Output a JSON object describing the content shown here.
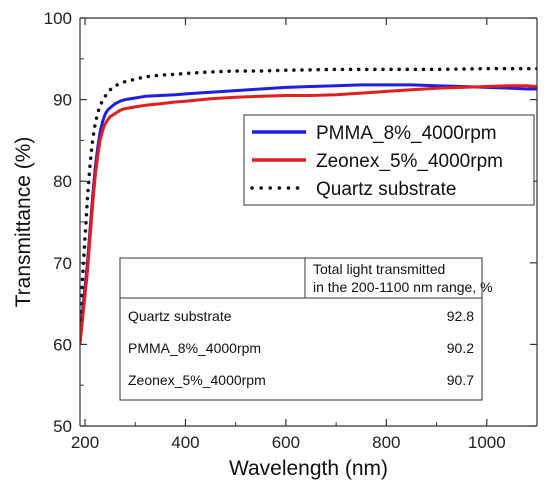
{
  "chart_data": {
    "type": "line",
    "title": "",
    "xlabel": "Wavelength (nm)",
    "ylabel": "Transmittance (%)",
    "xlim": [
      190,
      1100
    ],
    "ylim": [
      50,
      100
    ],
    "x_ticks": [
      200,
      400,
      600,
      800,
      1000
    ],
    "y_ticks": [
      50,
      60,
      70,
      80,
      90,
      100
    ],
    "grid": false,
    "legend_position": "right",
    "series": [
      {
        "name": "PMMA_8%_4000rpm",
        "color": "#1f1fe0",
        "style": "solid",
        "x": [
          190,
          195,
          200,
          205,
          210,
          215,
          220,
          225,
          230,
          235,
          240,
          245,
          250,
          260,
          270,
          280,
          300,
          320,
          350,
          380,
          400,
          450,
          500,
          550,
          600,
          650,
          700,
          750,
          800,
          850,
          900,
          950,
          1000,
          1050,
          1080,
          1100
        ],
        "y": [
          61,
          64,
          67,
          70,
          74,
          78,
          81.5,
          84,
          86,
          87.3,
          88.2,
          88.7,
          89.0,
          89.5,
          89.8,
          90.0,
          90.2,
          90.4,
          90.5,
          90.6,
          90.7,
          90.9,
          91.1,
          91.3,
          91.5,
          91.6,
          91.7,
          91.8,
          91.8,
          91.8,
          91.7,
          91.6,
          91.5,
          91.4,
          91.3,
          91.3
        ]
      },
      {
        "name": "Zeonex_5%_4000rpm",
        "color": "#e01f1f",
        "style": "solid",
        "x": [
          190,
          195,
          200,
          205,
          210,
          215,
          220,
          225,
          230,
          235,
          240,
          245,
          250,
          260,
          270,
          280,
          300,
          320,
          350,
          380,
          400,
          450,
          500,
          550,
          600,
          650,
          700,
          750,
          800,
          850,
          900,
          950,
          1000,
          1050,
          1080,
          1100
        ],
        "y": [
          60,
          63,
          66,
          69,
          73,
          77,
          80.5,
          83,
          85,
          86.2,
          87.0,
          87.5,
          87.9,
          88.3,
          88.7,
          88.9,
          89.1,
          89.3,
          89.5,
          89.7,
          89.8,
          90.1,
          90.3,
          90.4,
          90.5,
          90.5,
          90.6,
          90.8,
          91.0,
          91.2,
          91.4,
          91.5,
          91.6,
          91.7,
          91.7,
          91.6
        ]
      },
      {
        "name": "Quartz substrate",
        "color": "#111111",
        "style": "dotted",
        "x": [
          190,
          195,
          200,
          205,
          210,
          215,
          220,
          225,
          230,
          240,
          250,
          260,
          280,
          300,
          320,
          350,
          380,
          400,
          450,
          500,
          550,
          600,
          700,
          800,
          900,
          1000,
          1100
        ],
        "y": [
          63,
          68,
          73,
          78,
          82,
          85,
          87,
          88.3,
          89.3,
          90.4,
          91.2,
          91.7,
          92.2,
          92.5,
          92.8,
          93.0,
          93.1,
          93.2,
          93.4,
          93.5,
          93.5,
          93.6,
          93.7,
          93.7,
          93.7,
          93.8,
          93.8
        ]
      }
    ],
    "inset_table": {
      "header": [
        "",
        "Total light transmitted\nin the 200-1100 nm range, %"
      ],
      "rows": [
        [
          "Quartz substrate",
          "92.8"
        ],
        [
          "PMMA_8%_4000rpm",
          "90.2"
        ],
        [
          "Zeonex_5%_4000rpm",
          "90.7"
        ]
      ]
    }
  }
}
